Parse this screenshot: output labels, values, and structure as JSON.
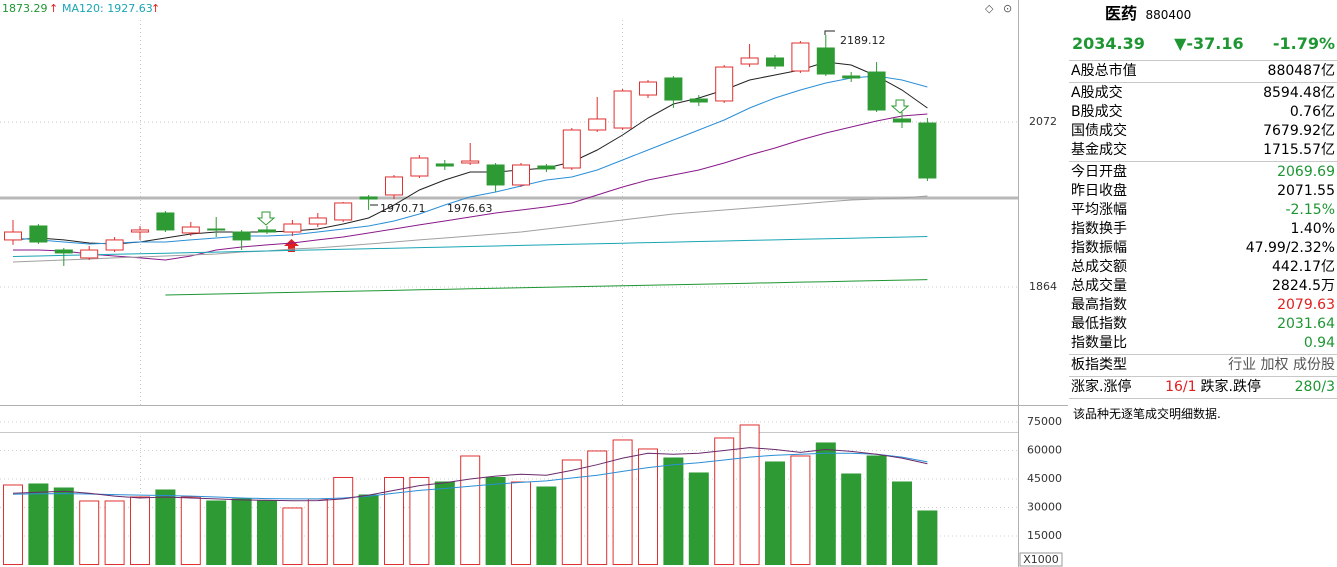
{
  "header": {
    "ma_labels": [
      "1873.29",
      "MA120: 1927.63"
    ],
    "ma_colors": [
      "#1e9632",
      "#1aa5b5"
    ]
  },
  "chart_data": [
    {
      "type": "candlestick",
      "open": [
        1923.3,
        1940.9,
        1910.6,
        1900.6,
        1910.6,
        1933.3,
        1957.3,
        1932.1,
        1937.1,
        1933.3,
        1935.9,
        1933.3,
        1943.4,
        1948.5,
        1977.5,
        1980.0,
        2003.9,
        2019.1,
        2020.3,
        2017.8,
        1992.6,
        2016.5,
        2014.0,
        2061.9,
        2064.4,
        2106.0,
        2127.5,
        2101.0,
        2098.5,
        2145.1,
        2152.7,
        2136.3,
        2165.3,
        2130.0,
        2135.0,
        2075.8,
        2070.7
      ],
      "high": [
        1948.5,
        1943.4,
        1913.2,
        1915.7,
        1927.0,
        1940.9,
        1959.8,
        1946.0,
        1952.2,
        1935.9,
        1940.9,
        1948.5,
        1957.3,
        1971.2,
        1980.0,
        2005.2,
        2030.4,
        2024.1,
        2045.5,
        2020.3,
        2020.3,
        2019.1,
        2064.4,
        2103.5,
        2113.6,
        2124.9,
        2130.0,
        2106.0,
        2143.9,
        2170.3,
        2156.5,
        2174.1,
        2181.7,
        2135.0,
        2147.6,
        2084.6,
        2077.1
      ],
      "low": [
        1917.0,
        1918.2,
        1890.5,
        1898.0,
        1908.1,
        1923.3,
        1933.3,
        1928.3,
        1927.0,
        1910.6,
        1930.8,
        1928.3,
        1939.6,
        1946.0,
        1961.1,
        1974.9,
        2001.4,
        2011.5,
        2017.8,
        1983.8,
        1990.1,
        2009.0,
        2011.5,
        2059.4,
        2061.9,
        2102.3,
        2089.7,
        2092.2,
        2096.0,
        2141.3,
        2138.8,
        2133.8,
        2130.0,
        2122.4,
        2084.6,
        2064.4,
        1997.6
      ],
      "close": [
        1933.3,
        1920.7,
        1906.9,
        1910.6,
        1923.3,
        1935.9,
        1935.9,
        1939.6,
        1935.9,
        1923.3,
        1933.3,
        1943.4,
        1951.0,
        1969.9,
        1974.9,
        2002.7,
        2026.6,
        2016.5,
        2022.8,
        1992.6,
        2017.8,
        2012.8,
        2061.9,
        2075.8,
        2111.1,
        2122.4,
        2099.7,
        2097.2,
        2141.3,
        2152.7,
        2142.6,
        2171.6,
        2132.5,
        2127.5,
        2087.1,
        2072.0,
        2001.4
      ],
      "up_color": "#e03030",
      "down_color": "#2e9a34",
      "ylim": [
        1715.2,
        2225.8
      ],
      "yticks": [
        1864,
        2072
      ],
      "lines": [
        {
          "color": "#222222",
          "values": [
            1923.3,
            1925.8,
            1923.3,
            1919.5,
            1918.2,
            1920.7,
            1925.8,
            1930.8,
            1933.3,
            1933.3,
            1933.3,
            1934.6,
            1937.1,
            1943.4,
            1951.0,
            1967.4,
            1986.3,
            1998.9,
            2009.0,
            2009.0,
            2011.5,
            2014.0,
            2021.6,
            2036.7,
            2055.6,
            2077.0,
            2094.7,
            2102.3,
            2112.3,
            2125.0,
            2131.3,
            2137.6,
            2147.6,
            2143.9,
            2130.0,
            2112.3,
            2089.7
          ]
        },
        {
          "color": "#2a8fd6",
          "values": [
            1925.8,
            1923.3,
            1920.7,
            1918.2,
            1919.5,
            1920.7,
            1920.7,
            1923.3,
            1925.8,
            1928.3,
            1928.3,
            1929.6,
            1933.3,
            1937.1,
            1940.9,
            1947.2,
            1956.0,
            1967.4,
            1977.5,
            1983.8,
            1991.3,
            1998.9,
            2002.7,
            2011.5,
            2024.1,
            2036.7,
            2049.3,
            2061.9,
            2074.5,
            2089.7,
            2102.3,
            2112.3,
            2121.2,
            2127.5,
            2130.0,
            2125.0,
            2116.1
          ]
        },
        {
          "color": "#8a1a8a",
          "values": [
            1910.6,
            1910.6,
            1909.4,
            1905.6,
            1903.1,
            1900.6,
            1898.0,
            1903.1,
            1910.6,
            1914.4,
            1917.0,
            1919.5,
            1923.3,
            1927.0,
            1932.1,
            1937.1,
            1942.2,
            1947.2,
            1952.2,
            1957.3,
            1961.1,
            1964.9,
            1969.9,
            1980.0,
            1990.1,
            1998.9,
            2005.2,
            2011.5,
            2020.3,
            2030.4,
            2039.2,
            2049.3,
            2058.1,
            2065.7,
            2073.3,
            2079.6,
            2082.1
          ]
        },
        {
          "color": "#a0a0a0",
          "values": [
            1895.5,
            1896.8,
            1898.0,
            1899.3,
            1900.6,
            1901.8,
            1903.1,
            1904.3,
            1905.6,
            1908.1,
            1909.4,
            1911.9,
            1913.2,
            1915.7,
            1918.2,
            1920.7,
            1923.3,
            1925.8,
            1928.3,
            1930.8,
            1933.3,
            1937.1,
            1940.9,
            1944.7,
            1948.5,
            1952.2,
            1956.0,
            1958.5,
            1961.1,
            1963.6,
            1966.1,
            1968.6,
            1971.2,
            1973.7,
            1974.9,
            1976.2,
            1978.7
          ]
        },
        {
          "color": "#1aa5b5",
          "values": [
            1902.4,
            1903.1,
            1903.8,
            1904.5,
            1905.2,
            1905.9,
            1906.6,
            1907.3,
            1908.0,
            1908.7,
            1909.4,
            1910.1,
            1910.8,
            1911.5,
            1912.2,
            1912.9,
            1913.6,
            1914.3,
            1915.0,
            1915.7,
            1916.4,
            1917.1,
            1917.8,
            1918.5,
            1919.2,
            1919.9,
            1920.6,
            1921.3,
            1922.0,
            1922.7,
            1923.4,
            1924.1,
            1924.8,
            1925.5,
            1926.2,
            1926.9,
            1927.6
          ]
        },
        {
          "color": "#1e9632",
          "values": [
            null,
            null,
            null,
            null,
            null,
            null,
            1853.9,
            1854.5,
            1855.2,
            1855.8,
            1856.5,
            1857.1,
            1857.8,
            1858.4,
            1859.1,
            1859.7,
            1860.4,
            1861.0,
            1861.7,
            1862.3,
            1863.0,
            1863.6,
            1864.3,
            1864.9,
            1865.5,
            1866.2,
            1866.8,
            1867.5,
            1868.1,
            1868.8,
            1869.4,
            1870.1,
            1870.7,
            1871.4,
            1872.0,
            1872.7,
            1873.3
          ]
        }
      ],
      "annotations": [
        "2189.12",
        "1970.71",
        "1976.63"
      ]
    },
    {
      "type": "bar",
      "values": [
        41840,
        42370,
        40260,
        33420,
        33420,
        35530,
        39210,
        35530,
        33420,
        34470,
        33420,
        29740,
        34470,
        45790,
        36580,
        45790,
        45790,
        43420,
        57100,
        45790,
        43420,
        40790,
        55000,
        59740,
        65530,
        60790,
        56050,
        48160,
        66580,
        73420,
        53950,
        57100,
        63950,
        47630,
        57100,
        43420,
        28160
      ],
      "ylim": [
        0,
        81300
      ],
      "yticks": [
        15000,
        30000,
        45000,
        60000,
        75000
      ],
      "unit_label": "X1000",
      "lines": [
        {
          "color": "#2a8fd6",
          "values": [
            37000,
            37200,
            37300,
            37100,
            36800,
            36500,
            36300,
            36000,
            35500,
            35000,
            34700,
            34500,
            34500,
            35000,
            36000,
            37500,
            39000,
            40000,
            41200,
            42300,
            43200,
            44000,
            45500,
            47000,
            49000,
            51000,
            52500,
            53500,
            55000,
            56500,
            57500,
            58000,
            58500,
            58500,
            58000,
            56500,
            54000
          ]
        },
        {
          "color": "#6a2a6a",
          "values": [
            37500,
            38000,
            38500,
            37500,
            36000,
            35000,
            35500,
            35000,
            34500,
            34000,
            33800,
            33500,
            33600,
            34500,
            36500,
            39000,
            41500,
            43000,
            45000,
            46500,
            47500,
            47000,
            49500,
            52500,
            56000,
            58500,
            58000,
            58500,
            60000,
            61500,
            60500,
            59000,
            60500,
            59500,
            58000,
            56000,
            53000
          ]
        }
      ]
    }
  ],
  "panel": {
    "title": "医药",
    "code": "880400",
    "price": "2034.39",
    "change": "▼-37.16",
    "change_pct": "-1.79%",
    "quote_color": "#1e9632",
    "sections": [
      [
        {
          "label": "A股总市值",
          "value": "880487亿",
          "color": "#000000"
        }
      ],
      [
        {
          "label": "A股成交",
          "value": "8594.48亿",
          "color": "#000000"
        },
        {
          "label": "B股成交",
          "value": "0.76亿",
          "color": "#000000"
        },
        {
          "label": "国债成交",
          "value": "7679.92亿",
          "color": "#000000"
        },
        {
          "label": "基金成交",
          "value": "1715.57亿",
          "color": "#000000"
        }
      ],
      [
        {
          "label": "今日开盘",
          "value": "2069.69",
          "color": "#1e9632"
        },
        {
          "label": "昨日收盘",
          "value": "2071.55",
          "color": "#000000"
        },
        {
          "label": "平均涨幅",
          "value": "-2.15%",
          "color": "#1e9632"
        },
        {
          "label": "指数换手",
          "value": "1.40%",
          "color": "#000000"
        },
        {
          "label": "指数振幅",
          "value": "47.99/2.32%",
          "color": "#000000"
        },
        {
          "label": "总成交额",
          "value": "442.17亿",
          "color": "#000000"
        },
        {
          "label": "总成交量",
          "value": "2824.5万",
          "color": "#000000"
        },
        {
          "label": "最高指数",
          "value": "2079.63",
          "color": "#e02020"
        },
        {
          "label": "最低指数",
          "value": "2031.64",
          "color": "#1e9632"
        },
        {
          "label": "指数量比",
          "value": "0.94",
          "color": "#1e9632"
        }
      ],
      [
        {
          "label": "板指类型",
          "value": "行业 加权 成份股",
          "color": "#555555"
        }
      ]
    ],
    "counts": {
      "up_label": "涨家.涨停",
      "up_value": "16/1",
      "up_color": "#e02020",
      "down_label": "跌家.跌停",
      "down_value": "280/3",
      "down_color": "#1e9632"
    },
    "note": "该品种无逐笔成交明细数据."
  }
}
